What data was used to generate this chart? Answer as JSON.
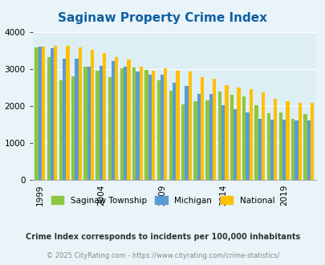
{
  "title": "Saginaw Property Crime Index",
  "title_color": "#1060a0",
  "years": [
    1999,
    2000,
    2001,
    2002,
    2003,
    2004,
    2005,
    2006,
    2007,
    2008,
    2009,
    2010,
    2011,
    2012,
    2013,
    2014,
    2015,
    2016,
    2017,
    2018,
    2019,
    2020,
    2021
  ],
  "saginaw": [
    3580,
    3330,
    2700,
    2800,
    3050,
    2950,
    2780,
    3020,
    3040,
    2970,
    2700,
    2420,
    2050,
    2130,
    2160,
    2390,
    2300,
    2250,
    2030,
    1800,
    1820,
    1650,
    1780
  ],
  "michigan": [
    3600,
    3560,
    3280,
    3270,
    3060,
    3080,
    3210,
    3050,
    2920,
    2850,
    2840,
    2620,
    2540,
    2320,
    2320,
    2030,
    1910,
    1820,
    1650,
    1640,
    1640,
    1610,
    1610
  ],
  "national": [
    3600,
    3630,
    3620,
    3590,
    3510,
    3430,
    3310,
    3260,
    3060,
    2960,
    3020,
    2960,
    2940,
    2770,
    2740,
    2570,
    2490,
    2450,
    2360,
    2200,
    2120,
    2090,
    2090
  ],
  "saginaw_color": "#8dc63f",
  "michigan_color": "#5b9bd5",
  "national_color": "#ffc000",
  "bg_color": "#e8f4f8",
  "plot_bg": "#ddeef5",
  "ylim": [
    0,
    4000
  ],
  "yticks": [
    0,
    1000,
    2000,
    3000,
    4000
  ],
  "xlabel_ticks": [
    1999,
    2004,
    2009,
    2014,
    2019
  ],
  "legend_labels": [
    "Saginaw Township",
    "Michigan",
    "National"
  ],
  "footnote1": "Crime Index corresponds to incidents per 100,000 inhabitants",
  "footnote2": "© 2025 CityRating.com - https://www.cityrating.com/crime-statistics/",
  "footnote1_color": "#333333",
  "footnote2_color": "#888888"
}
